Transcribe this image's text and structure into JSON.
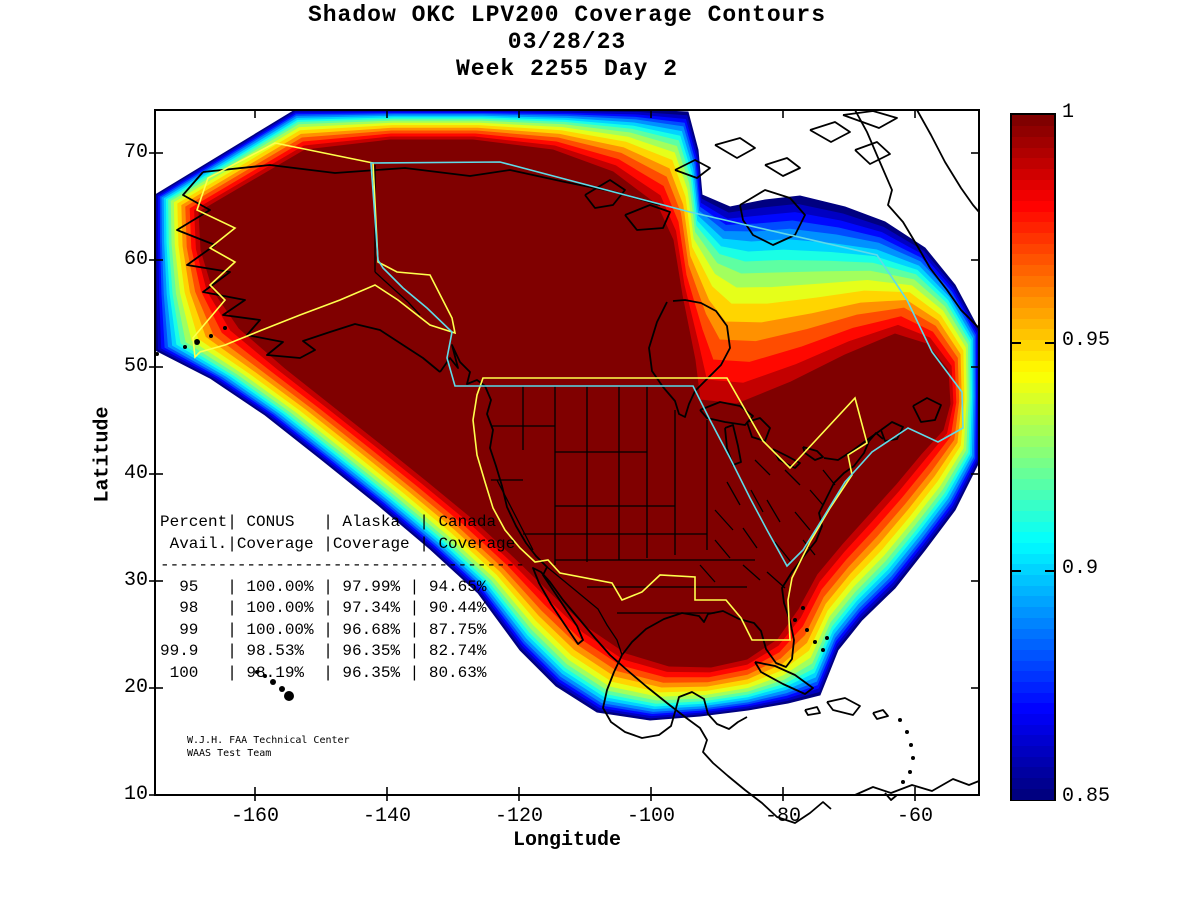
{
  "title": {
    "line1": "Shadow OKC LPV200 Coverage Contours",
    "line2": "03/28/23",
    "line3": "Week 2255 Day 2"
  },
  "axes": {
    "xlabel": "Longitude",
    "ylabel": "Latitude",
    "x_ticks": [
      "-160",
      "-140",
      "-120",
      "-100",
      "-80",
      "-60"
    ],
    "y_ticks": [
      "70",
      "60",
      "50",
      "40",
      "30",
      "20",
      "10"
    ]
  },
  "colorbar": {
    "tick_labels": [
      "1",
      "0.95",
      "0.9",
      "0.85"
    ],
    "min": 0.85,
    "max": 1,
    "colormap": "jet"
  },
  "coverage_table": {
    "headers": [
      "Percent Avail.",
      "CONUS Coverage",
      "Alaska Coverage",
      "Canada Coverage"
    ],
    "rows": [
      [
        "95",
        "100.00%",
        "97.99%",
        "94.65%"
      ],
      [
        "98",
        "100.00%",
        "97.34%",
        "90.44%"
      ],
      [
        "99",
        "100.00%",
        "96.68%",
        "87.75%"
      ],
      [
        "99.9",
        "98.53%",
        "96.35%",
        "82.74%"
      ],
      [
        "100",
        "98.19%",
        "96.35%",
        "80.63%"
      ]
    ],
    "lines": [
      "Percent| CONUS   | Alaska  | Canada",
      " Avail.|Coverage |Coverage | Coverage",
      "--------------------------------------",
      "  95   | 100.00% | 97.99% | 94.65%",
      "  98   | 100.00% | 97.34% | 90.44%",
      "  99   | 100.00% | 96.68% | 87.75%",
      "99.9   | 98.53%  | 96.35% | 82.74%",
      " 100   | 98.19%  | 96.35% | 80.63%"
    ]
  },
  "credit": {
    "line1": "W.J.H. FAA Technical Center",
    "line2": "WAAS Test Team"
  },
  "colors": {
    "background": "#ffffff",
    "coastline": "#000000",
    "conus_alaska_outline": "#ffff4d",
    "canada_outline": "#5fdbe8",
    "core_red": "#800000",
    "outer_blue": "#000080"
  },
  "chart_data": {
    "type": "heatmap",
    "title": "Shadow OKC LPV200 Coverage Contours",
    "subtitle": [
      "03/28/23",
      "Week 2255 Day 2"
    ],
    "xlabel": "Longitude",
    "ylabel": "Latitude",
    "xlim": [
      -175,
      -50
    ],
    "ylim": [
      10,
      74
    ],
    "x_ticks": [
      -160,
      -140,
      -120,
      -100,
      -80,
      -60
    ],
    "y_ticks": [
      70,
      60,
      50,
      40,
      30,
      20,
      10
    ],
    "grid": false,
    "legend_position": "right-colorbar",
    "colorbar": {
      "min": 0.85,
      "max": 1.0,
      "ticks": [
        1,
        0.95,
        0.9,
        0.85
      ],
      "colormap": "jet"
    },
    "description": "Filled contour map of WAAS LPV200 coverage availability over North America. Dark red core (availability ~1.0) covers CONUS, Alaska and southern Canada; rainbow fringe steps down to 0.85 (dark blue) along the Pacific/Atlantic edges; coverage depression funnels down over Hudson Bay and the Canadian Arctic; white (<0.85) over the high Arctic, Greenland, Caribbean and oceans.",
    "availability_table": {
      "columns": [
        "Percent Avail.",
        "CONUS Coverage",
        "Alaska Coverage",
        "Canada Coverage"
      ],
      "rows": [
        [
          95,
          "100.00%",
          "97.99%",
          "94.65%"
        ],
        [
          98,
          "100.00%",
          "97.34%",
          "90.44%"
        ],
        [
          99,
          "100.00%",
          "96.68%",
          "87.75%"
        ],
        [
          99.9,
          "98.53%",
          "96.35%",
          "82.74%"
        ],
        [
          100,
          "98.19%",
          "96.35%",
          "80.63%"
        ]
      ]
    }
  }
}
